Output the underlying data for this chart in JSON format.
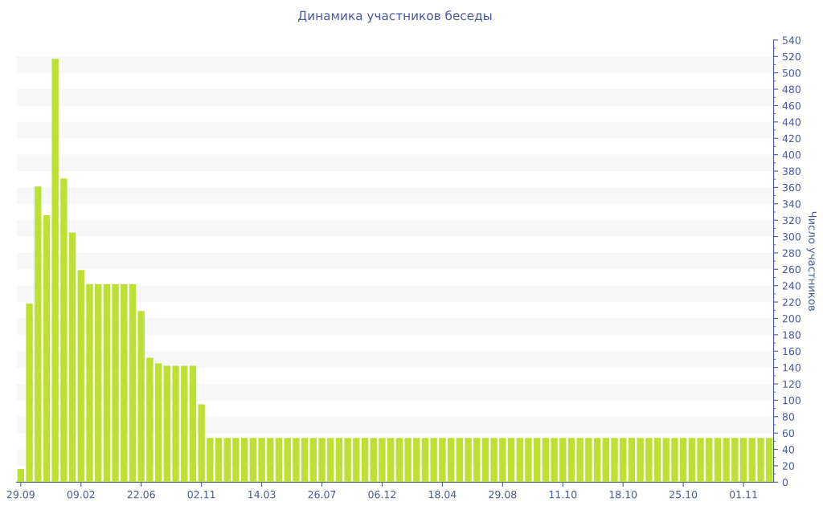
{
  "chart_data": {
    "type": "bar",
    "title": "Динамика участников беседы",
    "y2label": "Число участников",
    "categories": [
      "29.09",
      null,
      null,
      null,
      null,
      null,
      null,
      "09.02",
      null,
      null,
      null,
      null,
      null,
      null,
      "22.06",
      null,
      null,
      null,
      null,
      null,
      null,
      "02.11",
      null,
      null,
      null,
      null,
      null,
      null,
      "14.03",
      null,
      null,
      null,
      null,
      null,
      null,
      "26.07",
      null,
      null,
      null,
      null,
      null,
      null,
      "06.12",
      null,
      null,
      null,
      null,
      null,
      null,
      "18.04",
      null,
      null,
      null,
      null,
      null,
      null,
      "29.08",
      null,
      null,
      null,
      null,
      null,
      null,
      "11.10",
      null,
      null,
      null,
      null,
      null,
      null,
      "18.10",
      null,
      null,
      null,
      null,
      null,
      null,
      "25.10",
      null,
      null,
      null,
      null,
      null,
      null,
      "01.11",
      null,
      null,
      null
    ],
    "values": [
      16,
      218,
      361,
      326,
      517,
      371,
      305,
      259,
      242,
      242,
      242,
      242,
      242,
      242,
      209,
      152,
      145,
      142,
      142,
      142,
      142,
      95,
      54,
      54,
      54,
      54,
      54,
      54,
      54,
      54,
      54,
      54,
      54,
      54,
      54,
      54,
      54,
      54,
      54,
      54,
      54,
      54,
      54,
      54,
      54,
      54,
      54,
      54,
      54,
      54,
      54,
      54,
      54,
      54,
      54,
      54,
      54,
      54,
      54,
      54,
      54,
      54,
      54,
      54,
      54,
      54,
      54,
      54,
      54,
      54,
      54,
      54,
      54,
      54,
      54,
      54,
      54,
      54,
      54,
      54,
      54,
      54,
      54,
      54,
      54,
      54,
      54,
      54
    ],
    "color": "#bde132",
    "ylim": [
      0,
      540
    ],
    "yticks": [
      0,
      20,
      40,
      60,
      80,
      100,
      120,
      140,
      160,
      180,
      200,
      220,
      240,
      260,
      280,
      300,
      320,
      340,
      360,
      380,
      400,
      420,
      440,
      460,
      480,
      500,
      520,
      540
    ],
    "bands": [
      {
        "axis": "y",
        "from": 20,
        "to": 40,
        "color": "#f7f7f7"
      },
      {
        "axis": "y",
        "from": 60,
        "to": 80,
        "color": "#f7f7f7"
      },
      {
        "axis": "y",
        "from": 100,
        "to": 120,
        "color": "#f7f7f7"
      },
      {
        "axis": "y",
        "from": 140,
        "to": 160,
        "color": "#f7f7f7"
      },
      {
        "axis": "y",
        "from": 180,
        "to": 200,
        "color": "#f7f7f7"
      },
      {
        "axis": "y",
        "from": 220,
        "to": 240,
        "color": "#f7f7f7"
      },
      {
        "axis": "y",
        "from": 260,
        "to": 280,
        "color": "#f7f7f7"
      },
      {
        "axis": "y",
        "from": 300,
        "to": 320,
        "color": "#f7f7f7"
      },
      {
        "axis": "y",
        "from": 340,
        "to": 360,
        "color": "#f7f7f7"
      },
      {
        "axis": "y",
        "from": 380,
        "to": 400,
        "color": "#f7f7f7"
      },
      {
        "axis": "y",
        "from": 420,
        "to": 440,
        "color": "#f7f7f7"
      },
      {
        "axis": "y",
        "from": 460,
        "to": 480,
        "color": "#f7f7f7"
      },
      {
        "axis": "y",
        "from": 500,
        "to": 520,
        "color": "#f7f7f7"
      }
    ],
    "legend": false
  }
}
